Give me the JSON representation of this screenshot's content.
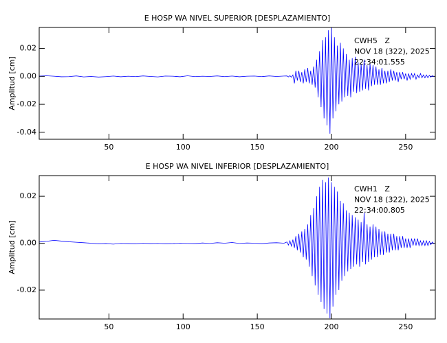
{
  "chart_data": [
    {
      "type": "line",
      "title": "E HOSP WA NIVEL SUPERIOR [DESPLAZAMIENTO]",
      "ylabel": "Amplitud [cm]",
      "annotations": [
        "CWH5   Z",
        "NOV 18 (322), 2025",
        "22:34:01.555"
      ],
      "color": "#0000ff",
      "xlim": [
        3,
        270
      ],
      "xticks": [
        50,
        100,
        150,
        200,
        250
      ],
      "ylim": [
        -0.045,
        0.035
      ],
      "yticks": [
        {
          "value": 0.02,
          "label": "0.02"
        },
        {
          "value": 0,
          "label": "0.00"
        },
        {
          "value": -0.02,
          "label": "-0.02"
        },
        {
          "value": -0.04,
          "label": "-0.04"
        }
      ],
      "x": [
        3,
        8,
        13,
        18,
        23,
        28,
        33,
        38,
        43,
        48,
        53,
        58,
        63,
        68,
        73,
        78,
        83,
        88,
        93,
        98,
        103,
        108,
        113,
        118,
        123,
        128,
        133,
        138,
        143,
        148,
        153,
        158,
        163,
        168,
        170,
        171,
        172,
        173,
        174,
        175,
        176,
        177,
        178,
        179,
        180,
        181,
        182,
        183,
        184,
        185,
        186,
        187,
        188,
        189,
        190,
        191,
        192,
        193,
        194,
        195,
        196,
        197,
        198,
        199,
        200,
        201,
        202,
        203,
        204,
        205,
        206,
        207,
        208,
        209,
        210,
        211,
        212,
        213,
        214,
        215,
        216,
        217,
        218,
        219,
        220,
        221,
        222,
        223,
        224,
        225,
        226,
        227,
        228,
        229,
        230,
        231,
        232,
        233,
        234,
        235,
        236,
        237,
        238,
        239,
        240,
        241,
        242,
        243,
        244,
        245,
        246,
        247,
        248,
        249,
        250,
        251,
        252,
        253,
        254,
        255,
        256,
        257,
        258,
        259,
        260,
        261,
        262,
        263,
        264,
        265,
        266,
        267,
        268,
        269
      ],
      "values": [
        0.0002,
        0.0004,
        0.0001,
        -0.0003,
        -0.0002,
        0.0003,
        -0.0004,
        -0.0001,
        -0.0005,
        -0.0002,
        0.0002,
        -0.0003,
        0.0001,
        -0.0002,
        0.0003,
        -0.0001,
        -0.0004,
        0.0002,
        0.0001,
        -0.0003,
        0.0004,
        -0.0002,
        0.0001,
        -0.0001,
        0.0003,
        -0.0002,
        0.0002,
        -0.0003,
        0.0001,
        0.0002,
        -0.0002,
        0.0003,
        -0.0001,
        0.0002,
        0.0003,
        -0.0004,
        0.0005,
        -0.0006,
        0.001,
        -0.005,
        0.004,
        -0.003,
        0.004,
        -0.004,
        0.003,
        -0.005,
        0.005,
        -0.004,
        0.006,
        -0.005,
        0.004,
        -0.006,
        0.007,
        -0.008,
        0.012,
        -0.015,
        0.018,
        -0.022,
        0.026,
        -0.03,
        0.028,
        -0.035,
        0.033,
        -0.041,
        0.035,
        -0.03,
        0.028,
        -0.025,
        0.022,
        -0.02,
        0.024,
        -0.018,
        0.02,
        -0.015,
        0.016,
        -0.014,
        0.012,
        -0.015,
        0.013,
        -0.011,
        0.014,
        -0.012,
        0.01,
        -0.011,
        0.009,
        -0.01,
        0.012,
        -0.009,
        0.008,
        -0.01,
        0.009,
        -0.007,
        0.008,
        -0.006,
        0.007,
        -0.006,
        0.005,
        -0.006,
        0.006,
        -0.005,
        0.004,
        -0.005,
        0.004,
        -0.004,
        0.005,
        -0.003,
        0.004,
        -0.003,
        0.003,
        -0.004,
        0.003,
        -0.002,
        0.003,
        -0.002,
        0.002,
        -0.003,
        0.002,
        -0.002,
        0.002,
        -0.001,
        0.002,
        -0.002,
        0.001,
        -0.001,
        0.002,
        -0.001,
        0.001,
        -0.001,
        0.001,
        -0.001,
        0.0008,
        -0.0006,
        0.0005,
        -0.0003
      ]
    },
    {
      "type": "line",
      "title": "E HOSP WA NIVEL INFERIOR [DESPLAZAMIENTO]",
      "ylabel": "Amplitud [cm]",
      "annotations": [
        "CWH1   Z",
        "NOV 18 (322), 2025",
        "22:34:00.805"
      ],
      "color": "#0000ff",
      "xlim": [
        3,
        270
      ],
      "xticks": [
        50,
        100,
        150,
        200,
        250
      ],
      "ylim": [
        -0.0323,
        0.0288
      ],
      "yticks": [
        {
          "value": 0.02,
          "label": "0.02"
        },
        {
          "value": 0,
          "label": "0.00"
        },
        {
          "value": -0.02,
          "label": "-0.02"
        }
      ],
      "x": [
        3,
        8,
        13,
        18,
        23,
        28,
        33,
        38,
        43,
        48,
        53,
        58,
        63,
        68,
        73,
        78,
        83,
        88,
        93,
        98,
        103,
        108,
        113,
        118,
        123,
        128,
        133,
        138,
        143,
        148,
        153,
        158,
        163,
        168,
        170,
        171,
        172,
        173,
        174,
        175,
        176,
        177,
        178,
        179,
        180,
        181,
        182,
        183,
        184,
        185,
        186,
        187,
        188,
        189,
        190,
        191,
        192,
        193,
        194,
        195,
        196,
        197,
        198,
        199,
        200,
        201,
        202,
        203,
        204,
        205,
        206,
        207,
        208,
        209,
        210,
        211,
        212,
        213,
        214,
        215,
        216,
        217,
        218,
        219,
        220,
        221,
        222,
        223,
        224,
        225,
        226,
        227,
        228,
        229,
        230,
        231,
        232,
        233,
        234,
        235,
        236,
        237,
        238,
        239,
        240,
        241,
        242,
        243,
        244,
        245,
        246,
        247,
        248,
        249,
        250,
        251,
        252,
        253,
        254,
        255,
        256,
        257,
        258,
        259,
        260,
        261,
        262,
        263,
        264,
        265,
        266,
        267,
        268,
        269
      ],
      "values": [
        0.0005,
        0.0008,
        0.0012,
        0.0009,
        0.0006,
        0.0004,
        0.0002,
        0.0,
        -0.0003,
        -0.0002,
        -0.0004,
        -0.0001,
        -0.0002,
        -0.0003,
        0.0,
        -0.0002,
        -0.0001,
        -0.0003,
        -0.0002,
        0.0,
        -0.0001,
        -0.0002,
        0.0001,
        -0.0001,
        0.0002,
        0.0,
        0.0003,
        -0.0001,
        0.0001,
        0.0,
        -0.0002,
        0.0001,
        0.0002,
        0.0,
        0.0005,
        -0.0008,
        0.001,
        -0.0012,
        0.0015,
        -0.002,
        0.003,
        -0.003,
        0.004,
        -0.004,
        0.005,
        -0.006,
        0.006,
        -0.007,
        0.008,
        -0.01,
        0.012,
        -0.014,
        0.015,
        -0.018,
        0.02,
        -0.022,
        0.024,
        -0.025,
        0.027,
        -0.028,
        0.026,
        -0.03,
        0.028,
        -0.032,
        0.026,
        -0.027,
        0.024,
        -0.022,
        0.022,
        -0.02,
        0.018,
        -0.016,
        0.017,
        -0.014,
        0.014,
        -0.012,
        0.013,
        -0.011,
        0.012,
        -0.01,
        0.011,
        -0.009,
        0.01,
        -0.01,
        0.009,
        -0.008,
        0.013,
        -0.009,
        0.008,
        -0.008,
        0.007,
        -0.007,
        0.008,
        -0.006,
        0.007,
        -0.006,
        0.006,
        -0.005,
        0.005,
        -0.005,
        0.005,
        -0.004,
        0.004,
        -0.004,
        0.004,
        -0.003,
        0.004,
        -0.003,
        0.003,
        -0.003,
        0.003,
        -0.002,
        0.003,
        -0.002,
        0.002,
        -0.002,
        0.002,
        -0.002,
        0.002,
        -0.001,
        0.002,
        -0.001,
        0.002,
        -0.001,
        0.001,
        -0.001,
        0.001,
        -0.001,
        0.001,
        -0.001,
        0.0008,
        -0.0006,
        0.0005,
        -0.0003
      ]
    }
  ]
}
